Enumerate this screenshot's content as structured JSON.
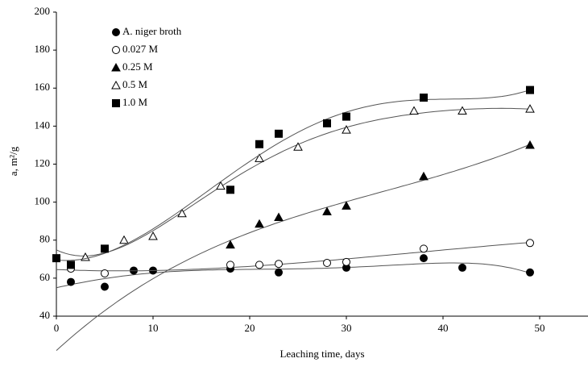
{
  "chart_data": {
    "type": "scatter",
    "x_label": "Leaching time, days",
    "y_label": "a, m²/g",
    "xlim": [
      0,
      55
    ],
    "xticks": [
      0,
      10,
      20,
      30,
      40,
      50
    ],
    "ylim": [
      40,
      200
    ],
    "yticks": [
      40,
      60,
      80,
      100,
      120,
      140,
      160,
      180,
      200
    ],
    "legend": "upper left",
    "trend_lines": true,
    "series": [
      {
        "name": "A. niger broth",
        "marker": "circle",
        "filled": true,
        "color": "#000000",
        "x": [
          1.5,
          5,
          8,
          10,
          18,
          23,
          30,
          38,
          42,
          49
        ],
        "values": [
          58,
          55.5,
          64,
          64,
          65,
          63,
          65.5,
          70.5,
          65.5,
          63
        ]
      },
      {
        "name": "0.027 M",
        "marker": "circle",
        "filled": false,
        "color": "#000000",
        "x": [
          1.5,
          5,
          18,
          21,
          23,
          28,
          30,
          38,
          49
        ],
        "values": [
          65,
          62.5,
          67,
          67,
          67.5,
          68,
          68.5,
          75.5,
          78.5
        ]
      },
      {
        "name": "0.25 M",
        "marker": "triangle",
        "filled": true,
        "color": "#000000",
        "x": [
          18,
          21,
          23,
          28,
          30,
          38,
          49
        ],
        "values": [
          77.5,
          88.5,
          92,
          95,
          98,
          113.5,
          130
        ]
      },
      {
        "name": "0.5 M",
        "marker": "triangle",
        "filled": false,
        "color": "#000000",
        "x": [
          3,
          7,
          10,
          13,
          17,
          21,
          25,
          30,
          37,
          42,
          49
        ],
        "values": [
          71,
          80,
          82,
          94,
          108.5,
          123,
          129,
          138,
          148,
          148,
          149
        ]
      },
      {
        "name": "1.0 M",
        "marker": "square",
        "filled": true,
        "color": "#000000",
        "x": [
          0,
          1.5,
          5,
          18,
          21,
          23,
          28,
          30,
          38,
          49
        ],
        "values": [
          70.5,
          67,
          75.5,
          106.5,
          130.5,
          136,
          141.5,
          145,
          155,
          159
        ]
      }
    ]
  }
}
